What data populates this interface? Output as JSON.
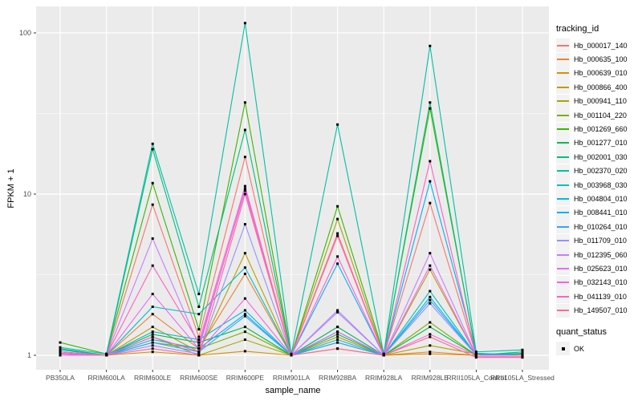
{
  "chart_data": {
    "type": "line",
    "title": "",
    "xlabel": "sample_name",
    "ylabel": "FPKM + 1",
    "y_scale": "log10",
    "ylim": [
      0.93,
      135
    ],
    "grid": "on",
    "legend_position": "right",
    "panel_bg": "#EBEBEB",
    "grid_color": "#FFFFFF",
    "tick_label_color": "#4D4D4D",
    "point_color": "#000000",
    "point_shape": "square",
    "y_ticks": [
      "1",
      "10",
      "100"
    ],
    "y_tick_values": [
      1,
      10,
      100
    ],
    "y_minor_values": [
      3.1623,
      31.623
    ],
    "categories": [
      "PB350LA",
      "RRIM600LA",
      "RRIM600LE",
      "RRIM600SE",
      "RRIM600PE",
      "RRIM901LA",
      "RRIM928BA",
      "RRIM928LA",
      "RRIM928LE",
      "RRII105LA_Control",
      "RRII105LA_Stressed"
    ],
    "series": [
      {
        "name": "Hb_000017_140",
        "color": "#F8766D",
        "values": [
          1.05,
          1.0,
          8.6,
          1.3,
          17.0,
          1.0,
          5.5,
          1.0,
          8.8,
          1.0,
          1.0
        ]
      },
      {
        "name": "Hb_000635_100",
        "color": "#EA8331",
        "values": [
          1.0,
          1.0,
          1.8,
          1.1,
          3.2,
          1.0,
          1.5,
          1.0,
          1.05,
          1.0,
          1.0
        ]
      },
      {
        "name": "Hb_000639_010",
        "color": "#D89000",
        "values": [
          1.0,
          1.0,
          1.05,
          1.0,
          1.06,
          1.0,
          1.1,
          1.0,
          1.02,
          1.0,
          1.0
        ]
      },
      {
        "name": "Hb_000866_400",
        "color": "#C09B00",
        "values": [
          1.0,
          1.0,
          1.5,
          1.05,
          4.3,
          1.0,
          1.3,
          1.0,
          3.4,
          1.0,
          1.02
        ]
      },
      {
        "name": "Hb_000941_110",
        "color": "#A3A500",
        "values": [
          1.0,
          1.0,
          1.3,
          1.0,
          1.25,
          1.0,
          7.0,
          1.0,
          1.15,
          1.02,
          1.0
        ]
      },
      {
        "name": "Hb_001104_220",
        "color": "#7CAE00",
        "values": [
          1.02,
          1.0,
          1.2,
          1.1,
          1.4,
          1.0,
          1.2,
          1.0,
          1.6,
          1.0,
          1.0
        ]
      },
      {
        "name": "Hb_001269_660",
        "color": "#39B600",
        "values": [
          1.2,
          1.02,
          11.7,
          1.45,
          37.0,
          1.0,
          8.4,
          1.02,
          34.0,
          1.02,
          1.02
        ]
      },
      {
        "name": "Hb_001277_010",
        "color": "#00BB4E",
        "values": [
          1.1,
          1.0,
          1.35,
          1.2,
          1.5,
          1.0,
          1.35,
          1.0,
          1.5,
          1.0,
          1.0
        ]
      },
      {
        "name": "Hb_002001_030",
        "color": "#00BF7D",
        "values": [
          1.05,
          1.0,
          19.0,
          2.0,
          25.0,
          1.0,
          1.5,
          1.0,
          37.0,
          1.0,
          1.05
        ]
      },
      {
        "name": "Hb_002370_020",
        "color": "#00C1A3",
        "values": [
          1.12,
          1.02,
          20.5,
          2.4,
          115.0,
          1.02,
          27.0,
          1.02,
          83.0,
          1.05,
          1.08
        ]
      },
      {
        "name": "Hb_003968_030",
        "color": "#00BFC4",
        "values": [
          1.05,
          1.0,
          2.0,
          1.8,
          3.5,
          1.0,
          1.4,
          1.0,
          2.5,
          1.0,
          1.03
        ]
      },
      {
        "name": "Hb_004804_010",
        "color": "#00BAE0",
        "values": [
          1.02,
          1.0,
          1.4,
          1.25,
          1.9,
          1.0,
          1.25,
          1.0,
          2.3,
          1.0,
          1.0
        ]
      },
      {
        "name": "Hb_008441_010",
        "color": "#00B0F6",
        "values": [
          1.08,
          1.0,
          1.25,
          1.1,
          1.8,
          1.0,
          3.7,
          1.0,
          12.0,
          1.03,
          1.0
        ]
      },
      {
        "name": "Hb_010264_010",
        "color": "#35A2FF",
        "values": [
          1.05,
          1.0,
          1.2,
          1.05,
          1.75,
          1.0,
          1.2,
          1.0,
          2.2,
          1.0,
          1.0
        ]
      },
      {
        "name": "Hb_011709_010",
        "color": "#9590FF",
        "values": [
          1.0,
          1.0,
          1.15,
          1.02,
          6.5,
          1.0,
          1.9,
          1.0,
          2.1,
          1.0,
          1.0
        ]
      },
      {
        "name": "Hb_012395_060",
        "color": "#C77CFF",
        "values": [
          1.0,
          1.0,
          5.3,
          1.15,
          10.5,
          1.0,
          1.85,
          1.0,
          4.3,
          1.0,
          1.0
        ]
      },
      {
        "name": "Hb_025623_010",
        "color": "#E76BF3",
        "values": [
          1.0,
          1.0,
          2.4,
          1.1,
          10.8,
          1.0,
          1.4,
          1.0,
          3.6,
          1.0,
          1.0
        ]
      },
      {
        "name": "Hb_032143_010",
        "color": "#FA62DB",
        "values": [
          1.02,
          1.0,
          1.3,
          1.05,
          2.25,
          1.0,
          4.1,
          1.0,
          1.35,
          1.0,
          1.0
        ]
      },
      {
        "name": "Hb_041139_010",
        "color": "#FF62BC",
        "values": [
          1.03,
          1.0,
          3.6,
          1.2,
          11.2,
          1.0,
          5.7,
          1.0,
          16.0,
          0.98,
          0.98
        ]
      },
      {
        "name": "Hb_149507_010",
        "color": "#FF6A98",
        "values": [
          1.05,
          1.0,
          1.1,
          1.0,
          10.0,
          1.0,
          1.1,
          1.0,
          1.3,
          0.97,
          0.97
        ]
      }
    ]
  },
  "axes": {
    "x_title": "sample_name",
    "y_title": "FPKM + 1"
  },
  "legend": {
    "tracking_title": "tracking_id",
    "quant_title": "quant_status",
    "quant_items": [
      {
        "label": "OK"
      }
    ]
  }
}
